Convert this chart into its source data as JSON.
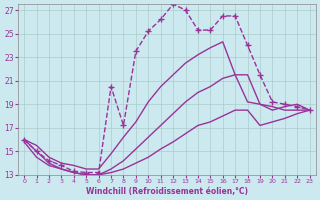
{
  "xlabel": "Windchill (Refroidissement éolien,°C)",
  "xlim": [
    -0.5,
    23.5
  ],
  "ylim": [
    13,
    27.5
  ],
  "xticks": [
    0,
    1,
    2,
    3,
    4,
    5,
    6,
    7,
    8,
    9,
    10,
    11,
    12,
    13,
    14,
    15,
    16,
    17,
    18,
    19,
    20,
    21,
    22,
    23
  ],
  "yticks": [
    13,
    15,
    17,
    19,
    21,
    23,
    25,
    27
  ],
  "background_color": "#cce9f0",
  "grid_color": "#aacccc",
  "line_color": "#993399",
  "series": [
    {
      "x": [
        0,
        1,
        2,
        3,
        4,
        5,
        6,
        7,
        8,
        9,
        10,
        11,
        12,
        13,
        14,
        15,
        16,
        17,
        18,
        19,
        20,
        21,
        22,
        23
      ],
      "y": [
        16,
        15,
        14.2,
        13.8,
        13.3,
        13.2,
        13.2,
        20.5,
        17.2,
        23.5,
        25.2,
        26.2,
        27.5,
        27.0,
        25.3,
        25.3,
        26.5,
        26.5,
        24.0,
        21.5,
        19.2,
        19.0,
        18.8,
        18.5
      ],
      "marker": "+",
      "markersize": 5,
      "linewidth": 1.0,
      "linestyle": "--"
    },
    {
      "x": [
        0,
        1,
        2,
        3,
        4,
        5,
        6,
        7,
        8,
        9,
        10,
        11,
        12,
        13,
        14,
        15,
        16,
        17,
        18,
        19,
        20,
        21,
        22,
        23
      ],
      "y": [
        16.0,
        15.5,
        14.5,
        14.0,
        13.8,
        13.5,
        13.5,
        14.8,
        16.2,
        17.5,
        19.2,
        20.5,
        21.5,
        22.5,
        23.2,
        23.8,
        24.3,
        21.5,
        19.2,
        19.0,
        18.8,
        18.5,
        18.5,
        18.5
      ],
      "marker": "None",
      "markersize": 0,
      "linewidth": 1.0,
      "linestyle": "-"
    },
    {
      "x": [
        0,
        1,
        2,
        3,
        4,
        5,
        6,
        7,
        8,
        9,
        10,
        11,
        12,
        13,
        14,
        15,
        16,
        17,
        18,
        19,
        20,
        21,
        22,
        23
      ],
      "y": [
        16.0,
        15.0,
        14.0,
        13.5,
        13.2,
        13.0,
        13.0,
        13.5,
        14.2,
        15.2,
        16.2,
        17.2,
        18.2,
        19.2,
        20.0,
        20.5,
        21.2,
        21.5,
        21.5,
        19.0,
        18.5,
        18.8,
        19.0,
        18.5
      ],
      "marker": "None",
      "markersize": 0,
      "linewidth": 1.0,
      "linestyle": "-"
    },
    {
      "x": [
        0,
        1,
        2,
        3,
        4,
        5,
        6,
        7,
        8,
        9,
        10,
        11,
        12,
        13,
        14,
        15,
        16,
        17,
        18,
        19,
        20,
        21,
        22,
        23
      ],
      "y": [
        15.8,
        14.5,
        13.8,
        13.5,
        13.2,
        13.0,
        13.0,
        13.2,
        13.5,
        14.0,
        14.5,
        15.2,
        15.8,
        16.5,
        17.2,
        17.5,
        18.0,
        18.5,
        18.5,
        17.2,
        17.5,
        17.8,
        18.2,
        18.5
      ],
      "marker": "None",
      "markersize": 0,
      "linewidth": 1.0,
      "linestyle": "-"
    }
  ]
}
